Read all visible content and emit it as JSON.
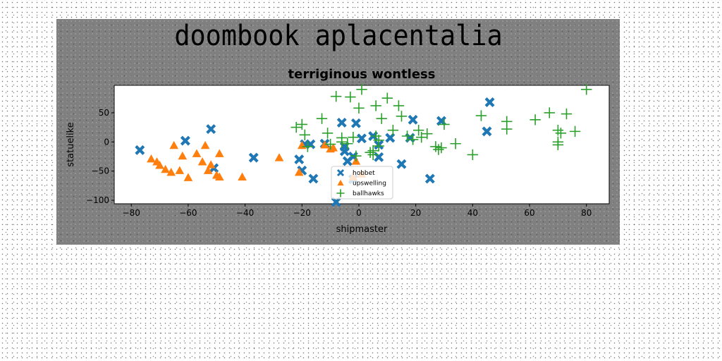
{
  "figure": {
    "suptitle": "doombook aplacentalia",
    "background": "#808080"
  },
  "chart_data": {
    "type": "scatter",
    "title": "terriginous wontless",
    "xlabel": "shipmaster",
    "ylabel": "statuelike",
    "xlim": [
      -86,
      88
    ],
    "ylim": [
      -106,
      97
    ],
    "xticks": [
      -80,
      -60,
      -40,
      -20,
      0,
      20,
      40,
      60,
      80
    ],
    "yticks": [
      -100,
      -50,
      0,
      50
    ],
    "grid": false,
    "legend_position": "lower-center",
    "series": [
      {
        "name": "hobbet",
        "marker": "x-filled",
        "color": "#1f77b4",
        "points": [
          [
            -77,
            -14
          ],
          [
            -61,
            2
          ],
          [
            -52,
            22
          ],
          [
            -51,
            -45
          ],
          [
            -37,
            -27
          ],
          [
            -21,
            -30
          ],
          [
            -20,
            -49
          ],
          [
            -19,
            -4
          ],
          [
            -17,
            -4
          ],
          [
            -16,
            -63
          ],
          [
            -12,
            -3
          ],
          [
            -8,
            -103
          ],
          [
            -6,
            33
          ],
          [
            -5,
            -8
          ],
          [
            -5,
            -16
          ],
          [
            -4,
            -33
          ],
          [
            -2,
            -25
          ],
          [
            -2,
            -64
          ],
          [
            -1,
            32
          ],
          [
            1,
            6
          ],
          [
            5,
            10
          ],
          [
            7,
            -5
          ],
          [
            7,
            -26
          ],
          [
            11,
            7
          ],
          [
            15,
            -38
          ],
          [
            18,
            7
          ],
          [
            19,
            38
          ],
          [
            25,
            -63
          ],
          [
            29,
            36
          ],
          [
            45,
            18
          ],
          [
            46,
            68
          ]
        ]
      },
      {
        "name": "upswelling",
        "marker": "triangle",
        "color": "#ff7f0e",
        "points": [
          [
            -73,
            -29
          ],
          [
            -71,
            -34
          ],
          [
            -70,
            -40
          ],
          [
            -68,
            -47
          ],
          [
            -66,
            -52
          ],
          [
            -65,
            -6
          ],
          [
            -63,
            -49
          ],
          [
            -62,
            -24
          ],
          [
            -60,
            -61
          ],
          [
            -57,
            -20
          ],
          [
            -55,
            -34
          ],
          [
            -54,
            -6
          ],
          [
            -53,
            -49
          ],
          [
            -52,
            -39
          ],
          [
            -50,
            -57
          ],
          [
            -49,
            -20
          ],
          [
            -49,
            -60
          ],
          [
            -41,
            -60
          ],
          [
            -28,
            -27
          ],
          [
            -21,
            -52
          ],
          [
            -20,
            -6
          ],
          [
            -12,
            -5
          ],
          [
            -10,
            -12
          ],
          [
            -9,
            -10
          ],
          [
            -2,
            -60
          ],
          [
            -1,
            -33
          ],
          [
            1,
            -55
          ]
        ]
      },
      {
        "name": "ballhawks",
        "marker": "plus",
        "color": "#2ca02c",
        "points": [
          [
            -22,
            25
          ],
          [
            -20,
            30
          ],
          [
            -19,
            12
          ],
          [
            -18,
            -8
          ],
          [
            -13,
            40
          ],
          [
            -11,
            15
          ],
          [
            -10,
            -4
          ],
          [
            -8,
            78
          ],
          [
            -6,
            7
          ],
          [
            -6,
            0
          ],
          [
            -4,
            -3
          ],
          [
            -3,
            77
          ],
          [
            -2,
            8
          ],
          [
            -1,
            -24
          ],
          [
            0,
            58
          ],
          [
            1,
            90
          ],
          [
            4,
            -18
          ],
          [
            5,
            -15
          ],
          [
            5,
            -22
          ],
          [
            6,
            10
          ],
          [
            6,
            62
          ],
          [
            7,
            3
          ],
          [
            7,
            -7
          ],
          [
            8,
            40
          ],
          [
            10,
            75
          ],
          [
            12,
            20
          ],
          [
            14,
            62
          ],
          [
            15,
            44
          ],
          [
            17,
            10
          ],
          [
            19,
            4
          ],
          [
            21,
            20
          ],
          [
            22,
            8
          ],
          [
            24,
            14
          ],
          [
            27,
            -8
          ],
          [
            28,
            -13
          ],
          [
            29,
            -10
          ],
          [
            30,
            30
          ],
          [
            34,
            -3
          ],
          [
            40,
            -22
          ],
          [
            43,
            45
          ],
          [
            52,
            35
          ],
          [
            52,
            22
          ],
          [
            62,
            38
          ],
          [
            67,
            50
          ],
          [
            70,
            0
          ],
          [
            70,
            -5
          ],
          [
            70,
            20
          ],
          [
            71,
            15
          ],
          [
            73,
            48
          ],
          [
            76,
            18
          ],
          [
            80,
            90
          ]
        ]
      }
    ]
  }
}
